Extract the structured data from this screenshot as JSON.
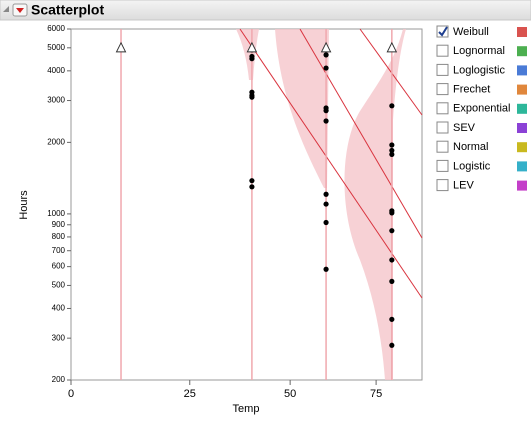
{
  "header": {
    "title": "Scatterplot"
  },
  "chart_data": {
    "type": "scatter",
    "xlabel": "Temp",
    "ylabel": "Hours",
    "x_scale": "arrhenius",
    "y_scale": "log",
    "xlim": [
      0,
      90
    ],
    "xticks": [
      0,
      25,
      50,
      75
    ],
    "ylim": [
      200,
      6000
    ],
    "yticks": [
      200,
      300,
      400,
      500,
      600,
      700,
      800,
      900,
      1000,
      2000,
      3000,
      4000,
      5000,
      6000
    ],
    "marker_color": "#000000",
    "x": [
      40,
      40,
      40,
      40,
      40,
      40,
      40,
      40,
      60,
      60,
      60,
      60,
      60,
      60,
      60,
      60,
      60,
      80,
      80,
      80,
      80,
      80,
      80,
      80,
      80,
      80,
      80,
      80
    ],
    "values": [
      4900,
      4600,
      4500,
      3250,
      3150,
      3100,
      1380,
      1300,
      4670,
      4110,
      2790,
      2720,
      2460,
      1210,
      1100,
      920,
      585,
      2850,
      1950,
      1850,
      1780,
      1030,
      1010,
      850,
      640,
      520,
      360,
      280
    ],
    "censored_x": [
      10,
      40,
      60,
      80
    ],
    "censored_values": [
      5000,
      5000,
      5000,
      5000
    ]
  },
  "distributions": [
    {
      "name": "Weibull",
      "color": "#d9534f",
      "checked": true
    },
    {
      "name": "Lognormal",
      "color": "#4caf50",
      "checked": false
    },
    {
      "name": "Loglogistic",
      "color": "#4a7bd6",
      "checked": false
    },
    {
      "name": "Frechet",
      "color": "#e0873c",
      "checked": false
    },
    {
      "name": "Exponential",
      "color": "#2db79a",
      "checked": false
    },
    {
      "name": "SEV",
      "color": "#8b42d6",
      "checked": false
    },
    {
      "name": "Normal",
      "color": "#c9b91f",
      "checked": false
    },
    {
      "name": "Logistic",
      "color": "#35b0c9",
      "checked": false
    },
    {
      "name": "LEV",
      "color": "#c43fc9",
      "checked": false
    }
  ]
}
